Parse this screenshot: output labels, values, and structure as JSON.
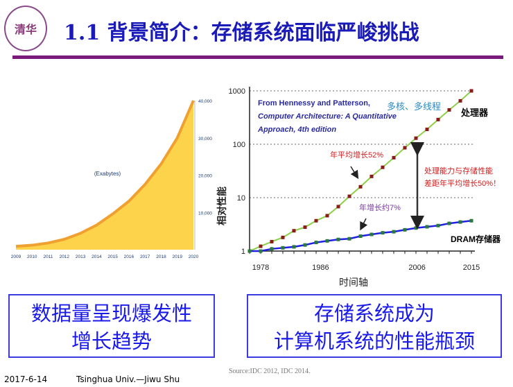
{
  "header": {
    "title": "1.1 背景简介：存储系统面临严峻挑战",
    "logo_text": "清华",
    "logo_ring": "TSINGHUA UNIVERSITY 1911"
  },
  "boxes": {
    "left": [
      "数据量呈现爆发性",
      "增长趋势"
    ],
    "right": [
      "存储系统成为",
      "计算机系统的性能瓶颈"
    ]
  },
  "footer": {
    "date": "2017-6-14",
    "author": "Tsinghua Univ.—Jiwu Shu",
    "source": "Source:IDC 2012, IDC 2014."
  },
  "colors": {
    "title": "#1a1ab8",
    "rule": "#7a1a7a",
    "box": "#3a3ae0",
    "area": "#fcd34a",
    "area_edge": "#f0a030",
    "processor": "#8bd045",
    "dram": "#2020e0",
    "marker": "#8b1a1a",
    "dram_marker": "#2a7a3a"
  },
  "chart_data": [
    {
      "type": "area",
      "title": "",
      "annotation": "(Exabytes)",
      "x": [
        2009,
        2010,
        2011,
        2012,
        2013,
        2014,
        2015,
        2016,
        2017,
        2018,
        2019,
        2020
      ],
      "values": [
        900,
        1200,
        1800,
        2800,
        4400,
        6600,
        9600,
        13000,
        17500,
        23000,
        30000,
        40000
      ],
      "x_ticks": [
        "2009",
        "2010",
        "2011",
        "2012",
        "2013",
        "2014",
        "2015",
        "2016",
        "2017",
        "2018",
        "2019",
        "2020"
      ],
      "y_ticks": [
        "10,000",
        "20,000",
        "30,000",
        "40,000"
      ],
      "ylim": [
        0,
        40000
      ],
      "y_axis": "right"
    },
    {
      "type": "line",
      "yscale": "log",
      "ylabel": "相对性能",
      "xlabel": "时间轴",
      "ylim": [
        1,
        1000
      ],
      "y_ticks": [
        "1",
        "10",
        "100",
        "1000"
      ],
      "x_ticks": [
        {
          "label": "1978",
          "index": 1
        },
        {
          "label": "1986",
          "index": 6.4
        },
        {
          "label": "2006",
          "index": 15.1
        },
        {
          "label": "2015",
          "index": 20
        }
      ],
      "series": [
        {
          "name": "处理器",
          "values": [
            1,
            1.23,
            1.5,
            1.8,
            2.4,
            2.8,
            3.7,
            4.6,
            6.8,
            10.6,
            16,
            25,
            37,
            56,
            86,
            130,
            190,
            290,
            440,
            650,
            1000
          ]
        },
        {
          "name": "DRAM存储器",
          "values": [
            1,
            1.0,
            1.1,
            1.15,
            1.2,
            1.3,
            1.45,
            1.55,
            1.65,
            1.7,
            1.9,
            2.05,
            2.2,
            2.3,
            2.5,
            2.7,
            2.85,
            3.0,
            3.3,
            3.5,
            3.7
          ]
        }
      ],
      "annotations": {
        "citation": [
          "From Hennessy and Patterson,",
          "Computer Architecture: A Quantitative",
          "Approach, 4th edition"
        ],
        "multicore": "多核、多线程",
        "cpu_growth": "年平均增长52%",
        "dram_growth": "年增长约7%",
        "gap": [
          "处理能力与存储性能",
          "差距年平均增长50%！"
        ]
      }
    }
  ]
}
